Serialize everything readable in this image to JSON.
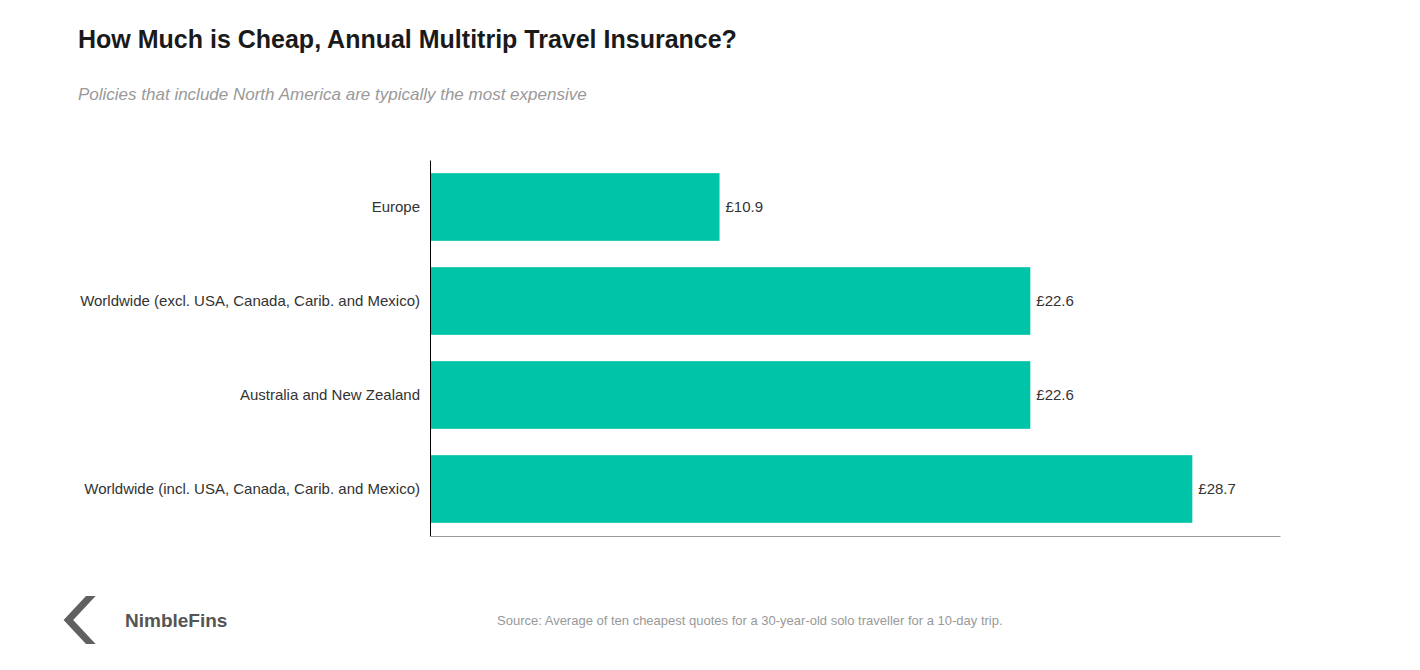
{
  "chart_data": {
    "type": "bar",
    "orientation": "horizontal",
    "title": "How Much is Cheap, Annual Multitrip Travel Insurance?",
    "subtitle": "Policies that include North America are typically the most expensive",
    "categories": [
      "Europe",
      "Worldwide (excl. USA, Canada, Carib. and Mexico)",
      "Australia and New Zealand",
      "Worldwide (incl. USA, Canada, Carib. and Mexico)"
    ],
    "values": [
      10.9,
      22.6,
      22.6,
      28.7
    ],
    "value_labels": [
      "£10.9",
      "£22.6",
      "£22.6",
      "£28.7"
    ],
    "data_labels": true,
    "color": "#00C4A7",
    "xlim": [
      0,
      32
    ],
    "tick_labels": "y",
    "grid": false,
    "annotations": [
      "Source: Average of ten cheapest quotes for a 30-year-old solo traveller for a 10-day trip.",
      "NimbleFins"
    ]
  }
}
